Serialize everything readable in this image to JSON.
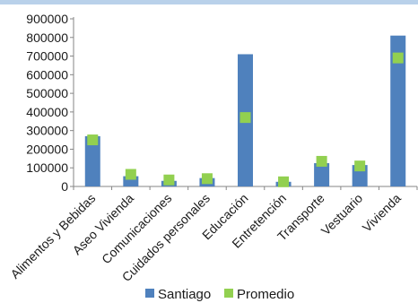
{
  "chart_data": {
    "type": "bar",
    "title": "",
    "xlabel": "",
    "ylabel": "",
    "categories": [
      "Alimentos y Bebidas",
      "Aseo Vivienda",
      "Comunicaciones",
      "Cuidados personales",
      "Educación",
      "Entretención",
      "Transporte",
      "Vestuario",
      "Vivienda"
    ],
    "ylim": [
      0,
      900000
    ],
    "yticks": [
      "900000",
      "800000",
      "700000",
      "600000",
      "500000",
      "400000",
      "300000",
      "200000",
      "100000",
      "0"
    ],
    "grid": false,
    "legend_position": "bottom",
    "series": [
      {
        "name": "Santiago",
        "type": "bar",
        "color": "#4f81bd",
        "values": [
          270000,
          55000,
          30000,
          45000,
          710000,
          25000,
          125000,
          115000,
          810000
        ]
      },
      {
        "name": "Promedio",
        "type": "marker",
        "color": "#92d050",
        "values": [
          250000,
          65000,
          35000,
          42000,
          370000,
          25000,
          135000,
          110000,
          690000
        ]
      }
    ]
  }
}
